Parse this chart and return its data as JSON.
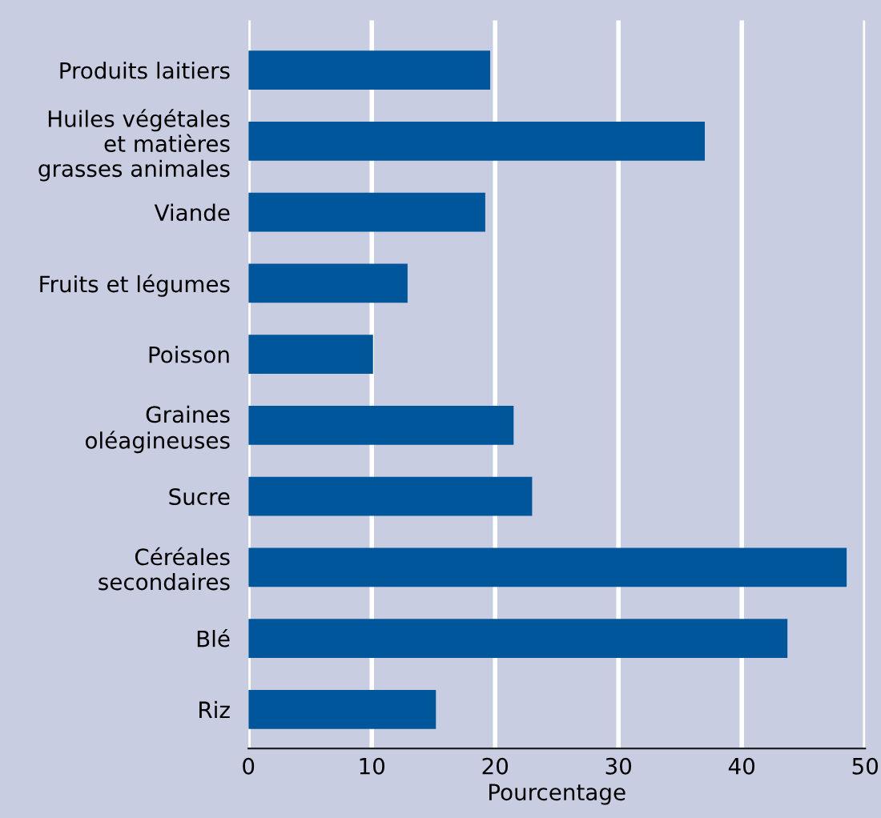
{
  "chart_data": {
    "type": "bar",
    "orientation": "horizontal",
    "xlabel": "Pourcentage",
    "categories": [
      "Produits laitiers",
      "Huiles végétales\net matières\ngrasses animales",
      "Viande",
      "Fruits et légumes",
      "Poisson",
      "Graines\noléagineuses",
      "Sucre",
      "Céréales\nsecondaires",
      "Blé",
      "Riz"
    ],
    "values": [
      19.6,
      37.0,
      19.2,
      12.9,
      10.1,
      21.5,
      23.0,
      48.5,
      43.7,
      15.2
    ],
    "color": "#00569a",
    "xlim": [
      0,
      50
    ],
    "xticks": [
      0,
      10,
      20,
      30,
      40,
      50
    ],
    "grid": "x"
  }
}
